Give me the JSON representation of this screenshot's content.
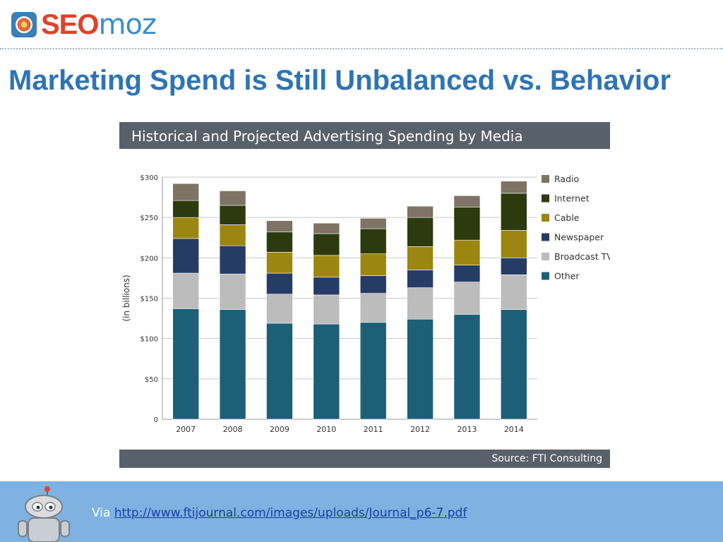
{
  "header": {
    "logo_text_seo": "SEO",
    "logo_text_moz": "moz",
    "logo_icon": "seomoz-flower-icon"
  },
  "slide": {
    "title": "Marketing Spend is Still Unbalanced vs. Behavior"
  },
  "footer": {
    "via_label": "Via",
    "link_text": "http://www.ftijournal.com/images/uploads/Journal_p6-7.pdf",
    "robot_icon": "roger-robot-icon"
  },
  "colors": {
    "title": "#2e74b5",
    "title_bar": "#58606a",
    "footer_bg": "#7fb2e0"
  },
  "chart_data": {
    "type": "bar",
    "stacked": true,
    "title": "Historical and Projected Advertising Spending by Media",
    "source": "Source: FTI Consulting",
    "ylabel": "(in billions)",
    "xlabel": "",
    "ylim": [
      0,
      300
    ],
    "yticks": [
      {
        "value": 0,
        "label": "0"
      },
      {
        "value": 50,
        "label": "$50"
      },
      {
        "value": 100,
        "label": "$100"
      },
      {
        "value": 150,
        "label": "$150"
      },
      {
        "value": 200,
        "label": "$200"
      },
      {
        "value": 250,
        "label": "$250"
      },
      {
        "value": 300,
        "label": "$300"
      }
    ],
    "grid": true,
    "legend_position": "right",
    "categories": [
      "2007",
      "2008",
      "2009",
      "2010",
      "2011",
      "2012",
      "2013",
      "2014"
    ],
    "series": [
      {
        "name": "Other",
        "color": "#1e5f78",
        "values": [
          137,
          136,
          119,
          118,
          120,
          124,
          130,
          136
        ]
      },
      {
        "name": "Broadcast TV",
        "color": "#bcbcbc",
        "values": [
          44,
          44,
          36,
          36,
          36,
          39,
          40,
          43
        ]
      },
      {
        "name": "Newspaper",
        "color": "#263c66",
        "values": [
          43,
          35,
          26,
          22,
          22,
          22,
          21,
          21
        ]
      },
      {
        "name": "Cable",
        "color": "#9c8612",
        "values": [
          26,
          26,
          26,
          27,
          27,
          29,
          31,
          34
        ]
      },
      {
        "name": "Internet",
        "color": "#2c3a0e",
        "values": [
          21,
          24,
          25,
          27,
          31,
          36,
          41,
          46
        ]
      },
      {
        "name": "Radio",
        "color": "#7d7465",
        "values": [
          21,
          18,
          14,
          13,
          13,
          14,
          14,
          15
        ]
      }
    ],
    "legend_order": [
      "Radio",
      "Internet",
      "Cable",
      "Newspaper",
      "Broadcast TV",
      "Other"
    ]
  }
}
